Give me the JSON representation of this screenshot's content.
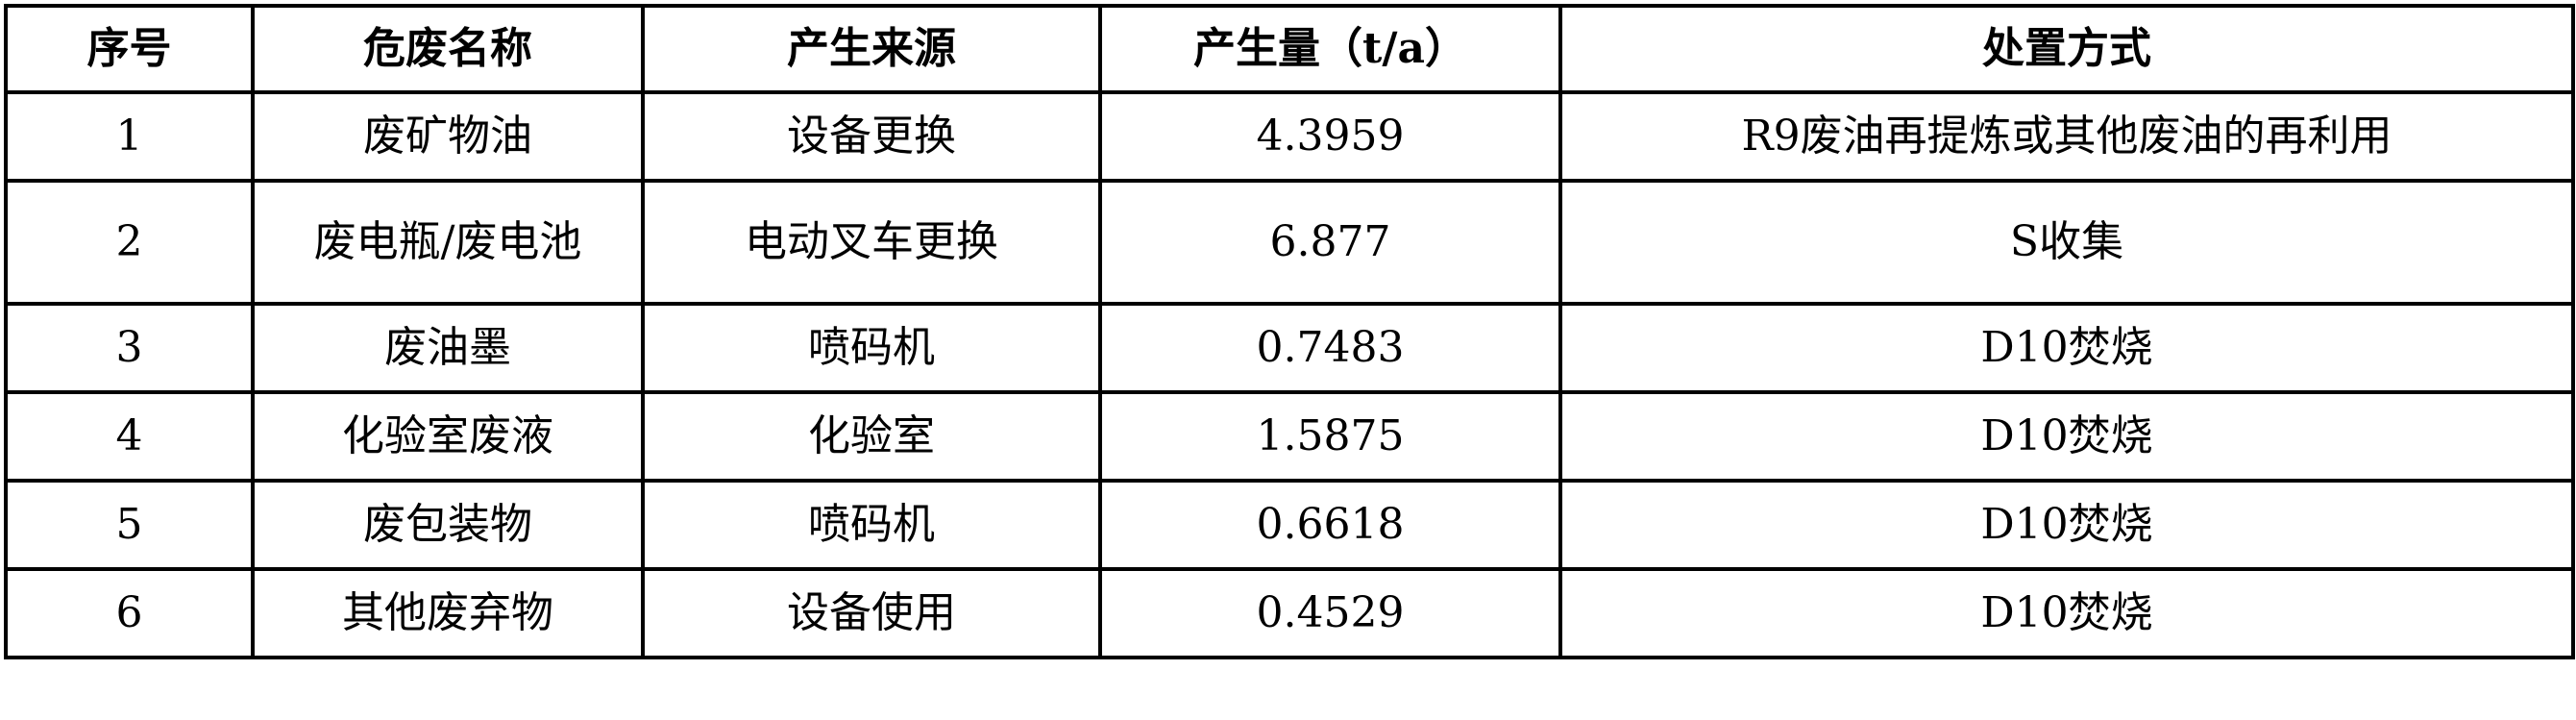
{
  "table": {
    "headers": {
      "index": "序号",
      "name": "危废名称",
      "source": "产生来源",
      "amount": "产生量（t/a）",
      "disposal": "处置方式"
    },
    "rows": [
      {
        "index": "1",
        "name": "废矿物油",
        "source": "设备更换",
        "amount": "4.3959",
        "disposal": "R9废油再提炼或其他废油的再利用"
      },
      {
        "index": "2",
        "name": "废电瓶/废电池",
        "source": "电动叉车更换",
        "amount": "6.877",
        "disposal": "S收集"
      },
      {
        "index": "3",
        "name": "废油墨",
        "source": "喷码机",
        "amount": "0.7483",
        "disposal": "D10焚烧"
      },
      {
        "index": "4",
        "name": "化验室废液",
        "source": "化验室",
        "amount": "1.5875",
        "disposal": "D10焚烧"
      },
      {
        "index": "5",
        "name": "废包装物",
        "source": "喷码机",
        "amount": "0.6618",
        "disposal": "D10焚烧"
      },
      {
        "index": "6",
        "name": "其他废弃物",
        "source": "设备使用",
        "amount": "0.4529",
        "disposal": "D10焚烧"
      }
    ]
  }
}
